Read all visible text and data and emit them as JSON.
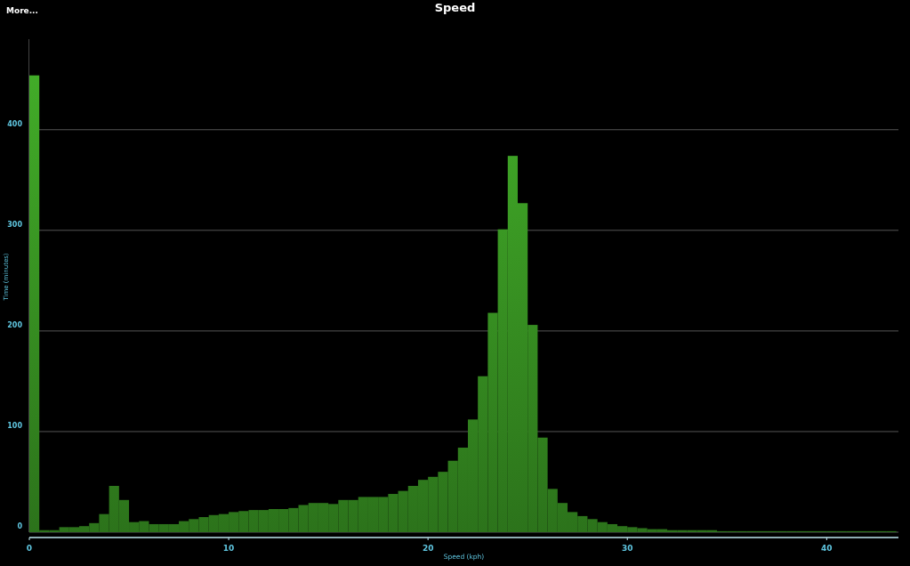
{
  "chart_data": {
    "type": "histogram",
    "title": "Speed",
    "xlabel": "Speed (kph)",
    "ylabel": "Time (minutes)",
    "annotations": [
      "More..."
    ],
    "bins": [
      0,
      0.5,
      1,
      1.5,
      2,
      2.5,
      3,
      3.5,
      4,
      4.5,
      5,
      5.5,
      6,
      6.5,
      7,
      7.5,
      8,
      8.5,
      9,
      9.5,
      10,
      10.5,
      11,
      11.5,
      12,
      12.5,
      13,
      13.5,
      14,
      14.5,
      15,
      15.5,
      16,
      16.5,
      17,
      17.5,
      18,
      18.5,
      19,
      19.5,
      20,
      20.5,
      21,
      21.5,
      22,
      22.5,
      23,
      23.5,
      24,
      24.5,
      25,
      25.5,
      26,
      26.5,
      27,
      27.5,
      28,
      28.5,
      29,
      29.5,
      30,
      30.5,
      31,
      31.5,
      32,
      32.5,
      33,
      33.5,
      34,
      34.5,
      35,
      35.5,
      36,
      36.5,
      37,
      37.5,
      38,
      38.5,
      39,
      39.5,
      40,
      40.5,
      41,
      41.5,
      42,
      42.5,
      43,
      43.5
    ],
    "values": [
      454,
      2,
      2,
      5,
      5,
      6,
      9,
      18,
      46,
      32,
      10,
      11,
      8,
      8,
      8,
      11,
      13,
      15,
      17,
      18,
      20,
      21,
      22,
      22,
      23,
      23,
      24,
      27,
      29,
      29,
      28,
      32,
      32,
      35,
      35,
      35,
      38,
      41,
      46,
      52,
      55,
      60,
      71,
      84,
      112,
      155,
      218,
      301,
      374,
      327,
      206,
      94,
      43,
      29,
      20,
      16,
      13,
      10,
      8,
      6,
      5,
      4,
      3,
      3,
      2,
      2,
      2,
      2,
      2,
      1,
      1,
      1,
      1,
      1,
      1,
      1,
      1,
      1,
      1,
      1,
      1,
      1,
      1,
      1,
      1,
      1,
      1
    ],
    "color": "#3c9e25",
    "xlim": [
      0,
      43.6
    ],
    "xticks": [
      0,
      10,
      20,
      30,
      40
    ],
    "ylim": [
      0,
      490
    ],
    "yticks": [
      0,
      100,
      200,
      300,
      400
    ],
    "grid": "y"
  }
}
